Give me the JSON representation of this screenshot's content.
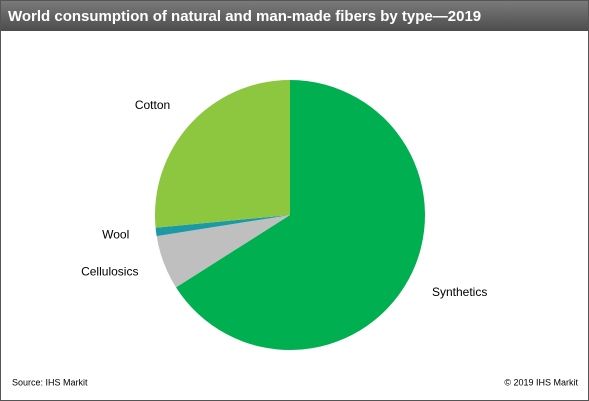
{
  "chart_data": {
    "type": "pie",
    "title": "World consumption  of natural and man-made fibers by type—2019",
    "categories": [
      "Synthetics",
      "Cellulosics",
      "Wool",
      "Cotton"
    ],
    "values": [
      66,
      6.5,
      1,
      26.5
    ],
    "colors": [
      "#00b050",
      "#bfbfbf",
      "#1b9aa6",
      "#8dc63f"
    ],
    "source": "Source:  IHS Markit",
    "copyright": "© 2019  IHS Markit"
  }
}
